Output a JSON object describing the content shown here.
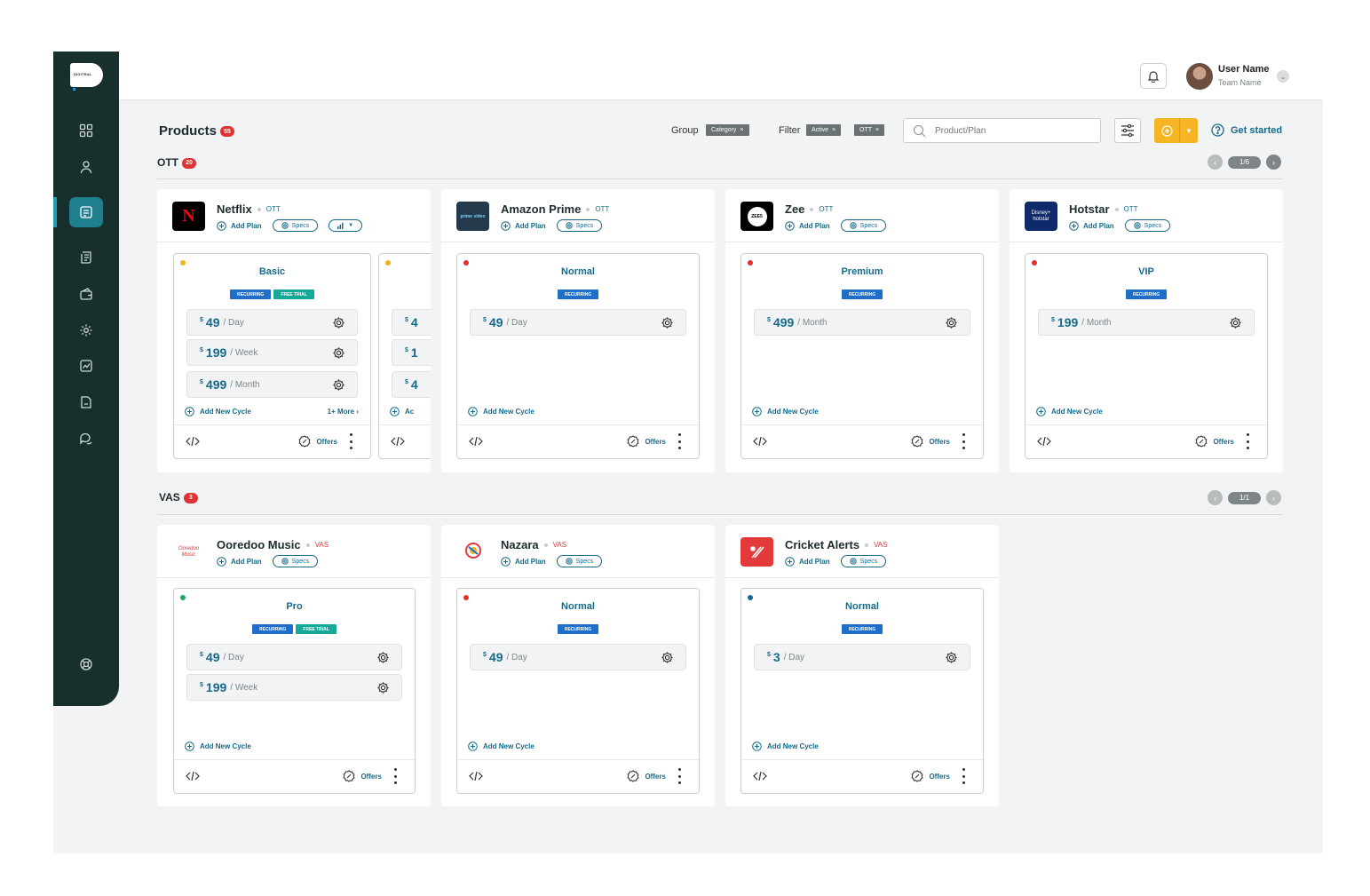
{
  "brand": {
    "logo_text": "DIGITRAL"
  },
  "nav_items": [
    "dashboard",
    "users",
    "products",
    "reports",
    "billing",
    "settings",
    "analytics",
    "documents",
    "support"
  ],
  "header": {
    "user_name": "User Name",
    "team_name": "Team Name"
  },
  "toolbar": {
    "title": "Products",
    "count": "55",
    "group_label": "Group",
    "group_chips": [
      "Category"
    ],
    "filter_label": "Filter",
    "filter_chips": [
      "Active",
      "OTT"
    ],
    "search_placeholder": "Product/Plan",
    "get_started": "Get started"
  },
  "sections": {
    "ott": {
      "title": "OTT",
      "count": "20",
      "page": "1/6"
    },
    "vas": {
      "title": "VAS",
      "count": "3",
      "page": "1/1"
    }
  },
  "labels": {
    "add_plan": "Add Plan",
    "specs": "Specs",
    "add_new_cycle": "Add New Cycle",
    "offers": "Offers",
    "recurring": "RECURRING",
    "free_trial": "FREE TRIAL",
    "currency": "$"
  },
  "products": [
    {
      "name": "Netflix",
      "category": "OTT",
      "plans": [
        {
          "title": "Basic",
          "status_color": "#f2b21e",
          "tags": [
            "RECURRING",
            "FREE TRIAL"
          ],
          "prices": [
            {
              "amount": "49",
              "period": "/ Day"
            },
            {
              "amount": "199",
              "period": "/ Week"
            },
            {
              "amount": "499",
              "period": "/ Month"
            }
          ],
          "more": "1+ More"
        },
        {
          "title": "",
          "status_color": "#f2b21e",
          "tags": [],
          "prices": [
            {
              "amount": "4",
              "period": ""
            },
            {
              "amount": "1",
              "period": ""
            },
            {
              "amount": "4",
              "period": ""
            }
          ],
          "add_cycle_partial": "Ac"
        }
      ]
    },
    {
      "name": "Amazon Prime",
      "category": "OTT",
      "logo_text": "prime video",
      "plans": [
        {
          "title": "Normal",
          "status_color": "#dd3333",
          "tags": [
            "RECURRING"
          ],
          "prices": [
            {
              "amount": "49",
              "period": "/ Day"
            }
          ]
        }
      ]
    },
    {
      "name": "Zee",
      "category": "OTT",
      "logo_text": "ZEE5",
      "plans": [
        {
          "title": "Premium",
          "status_color": "#dd3333",
          "tags": [
            "RECURRING"
          ],
          "prices": [
            {
              "amount": "499",
              "period": "/ Month"
            }
          ]
        }
      ]
    },
    {
      "name": "Hotstar",
      "category": "OTT",
      "logo_text": "Disney+ hotstar",
      "plans": [
        {
          "title": "VIP",
          "status_color": "#dd3333",
          "tags": [
            "RECURRING"
          ],
          "prices": [
            {
              "amount": "199",
              "period": "/ Month"
            }
          ]
        }
      ]
    },
    {
      "name": "Ooredoo Music",
      "category": "VAS",
      "logo_text": "Ooredoo Music",
      "plans": [
        {
          "title": "Pro",
          "status_color": "#1ea865",
          "tags": [
            "RECURRING",
            "FREE TRIAL"
          ],
          "prices": [
            {
              "amount": "49",
              "period": "/ Day"
            },
            {
              "amount": "199",
              "period": "/ Week"
            }
          ]
        }
      ]
    },
    {
      "name": "Nazara",
      "category": "VAS",
      "logo_text": "Nazara",
      "plans": [
        {
          "title": "Normal",
          "status_color": "#dd3333",
          "tags": [
            "RECURRING"
          ],
          "prices": [
            {
              "amount": "49",
              "period": "/ Day"
            }
          ]
        }
      ]
    },
    {
      "name": "Cricket Alerts",
      "category": "VAS",
      "plans": [
        {
          "title": "Normal",
          "status_color": "#166a8a",
          "tags": [
            "RECURRING"
          ],
          "prices": [
            {
              "amount": "3",
              "period": "/ Day"
            }
          ]
        }
      ]
    }
  ]
}
